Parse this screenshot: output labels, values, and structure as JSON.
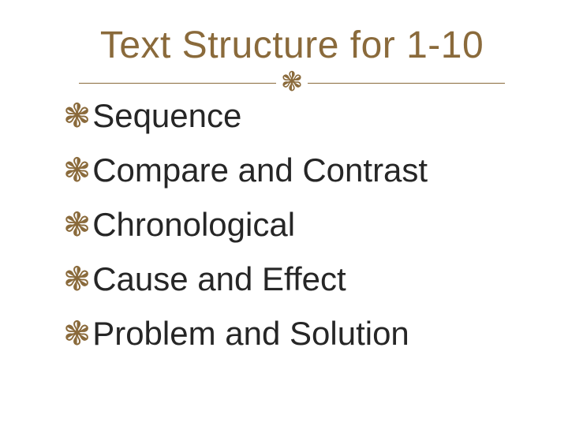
{
  "slide": {
    "title": "Text Structure for 1-10",
    "title_color": "#8a6a3b",
    "title_fontsize": 48,
    "divider_glyph": "❃",
    "bullet_glyph": "❃",
    "bullet_color": "#8a6a3b",
    "text_color": "#262626",
    "item_fontsize": 42,
    "background_color": "#ffffff",
    "items": [
      {
        "label": "Sequence"
      },
      {
        "label": "Compare and Contrast"
      },
      {
        "label": "Chronological"
      },
      {
        "label": "Cause and Effect"
      },
      {
        "label": "Problem and Solution"
      }
    ]
  }
}
